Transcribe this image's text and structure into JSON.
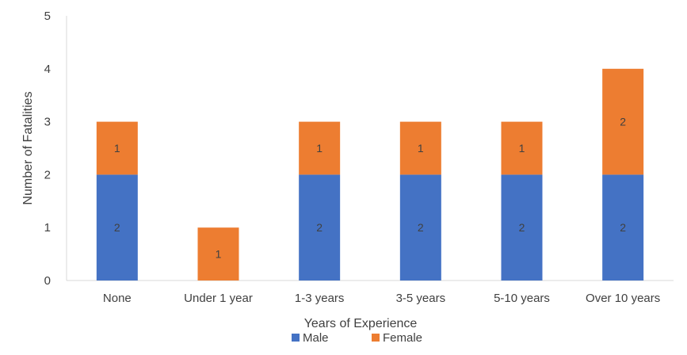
{
  "chart_data": {
    "type": "bar",
    "stacked": true,
    "title": "",
    "xlabel": "Years of Experience",
    "ylabel": "Number of Fatalities",
    "ylim": [
      0,
      5
    ],
    "yticks": [
      0,
      1,
      2,
      3,
      4,
      5
    ],
    "grid": false,
    "legend_position": "bottom",
    "categories": [
      "None",
      "Under 1 year",
      "1-3 years",
      "3-5 years",
      "5-10 years",
      "Over 10 years"
    ],
    "series": [
      {
        "name": "Male",
        "color": "#4472C4",
        "values": [
          2,
          0,
          2,
          2,
          2,
          2
        ]
      },
      {
        "name": "Female",
        "color": "#ED7D31",
        "values": [
          1,
          1,
          1,
          1,
          1,
          2
        ]
      }
    ]
  }
}
